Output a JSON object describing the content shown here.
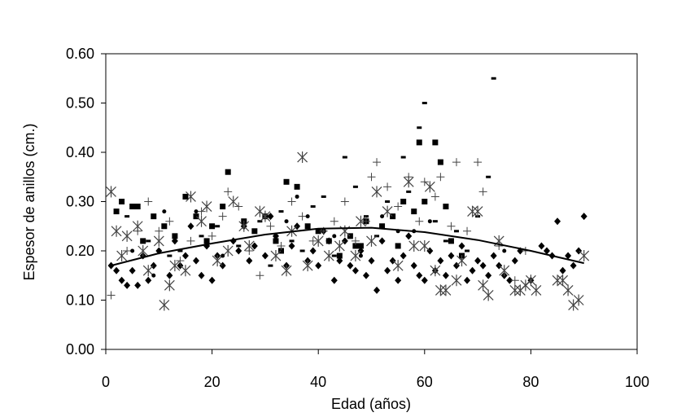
{
  "chart_data": {
    "type": "scatter",
    "title": "",
    "xlabel": "Edad (años)",
    "ylabel": "Espesor de anillos (cm.)",
    "xlim": [
      0,
      100
    ],
    "ylim": [
      0,
      0.6
    ],
    "x_ticks": [
      0,
      20,
      40,
      60,
      80,
      100
    ],
    "x_tick_labels": [
      "0",
      "20",
      "40",
      "60",
      "80",
      "100"
    ],
    "y_ticks": [
      0,
      0.1,
      0.2,
      0.3,
      0.4,
      0.5,
      0.6
    ],
    "y_tick_labels": [
      "0.00",
      "0.10",
      "0.20",
      "0.30",
      "0.40",
      "0.50",
      "0.60"
    ],
    "grid": false,
    "legend": "none",
    "colors": {
      "points": "#000000",
      "light_points": "#444444",
      "axis": "#000000"
    },
    "series": [
      {
        "marker": "diamond",
        "points": [
          [
            1,
            0.17
          ],
          [
            2,
            0.16
          ],
          [
            3,
            0.14
          ],
          [
            4,
            0.13
          ],
          [
            5,
            0.16
          ],
          [
            6,
            0.13
          ],
          [
            7,
            0.19
          ],
          [
            8,
            0.14
          ],
          [
            9,
            0.17
          ],
          [
            10,
            0.2
          ],
          [
            12,
            0.15
          ],
          [
            13,
            0.22
          ],
          [
            14,
            0.17
          ],
          [
            15,
            0.19
          ],
          [
            16,
            0.25
          ],
          [
            17,
            0.18
          ],
          [
            18,
            0.15
          ],
          [
            19,
            0.21
          ],
          [
            20,
            0.14
          ],
          [
            21,
            0.19
          ],
          [
            22,
            0.17
          ],
          [
            24,
            0.22
          ],
          [
            25,
            0.2
          ],
          [
            26,
            0.25
          ],
          [
            27,
            0.18
          ],
          [
            28,
            0.21
          ],
          [
            30,
            0.19
          ],
          [
            31,
            0.27
          ],
          [
            32,
            0.23
          ],
          [
            34,
            0.17
          ],
          [
            35,
            0.21
          ],
          [
            36,
            0.25
          ],
          [
            38,
            0.18
          ],
          [
            39,
            0.2
          ],
          [
            40,
            0.17
          ],
          [
            41,
            0.24
          ],
          [
            42,
            0.22
          ],
          [
            43,
            0.14
          ],
          [
            44,
            0.18
          ],
          [
            45,
            0.22
          ],
          [
            46,
            0.17
          ],
          [
            47,
            0.16
          ],
          [
            48,
            0.2
          ],
          [
            49,
            0.15
          ],
          [
            50,
            0.18
          ],
          [
            51,
            0.12
          ],
          [
            52,
            0.22
          ],
          [
            53,
            0.16
          ],
          [
            54,
            0.18
          ],
          [
            55,
            0.14
          ],
          [
            56,
            0.19
          ],
          [
            57,
            0.23
          ],
          [
            58,
            0.17
          ],
          [
            59,
            0.15
          ],
          [
            60,
            0.14
          ],
          [
            61,
            0.2
          ],
          [
            62,
            0.16
          ],
          [
            63,
            0.18
          ],
          [
            64,
            0.15
          ],
          [
            65,
            0.19
          ],
          [
            66,
            0.17
          ],
          [
            67,
            0.21
          ],
          [
            68,
            0.14
          ],
          [
            69,
            0.16
          ],
          [
            70,
            0.18
          ],
          [
            71,
            0.17
          ],
          [
            72,
            0.15
          ],
          [
            73,
            0.19
          ],
          [
            74,
            0.17
          ],
          [
            75,
            0.15
          ],
          [
            76,
            0.14
          ],
          [
            77,
            0.18
          ],
          [
            78,
            0.2
          ],
          [
            80,
            0.14
          ],
          [
            82,
            0.21
          ],
          [
            83,
            0.2
          ],
          [
            84,
            0.19
          ],
          [
            85,
            0.26
          ],
          [
            86,
            0.16
          ],
          [
            87,
            0.19
          ],
          [
            88,
            0.17
          ],
          [
            89,
            0.2
          ],
          [
            90,
            0.27
          ]
        ]
      },
      {
        "marker": "square",
        "points": [
          [
            2,
            0.28
          ],
          [
            3,
            0.3
          ],
          [
            5,
            0.29
          ],
          [
            6,
            0.29
          ],
          [
            7,
            0.22
          ],
          [
            9,
            0.27
          ],
          [
            11,
            0.25
          ],
          [
            13,
            0.23
          ],
          [
            15,
            0.31
          ],
          [
            17,
            0.27
          ],
          [
            19,
            0.22
          ],
          [
            20,
            0.25
          ],
          [
            22,
            0.29
          ],
          [
            23,
            0.36
          ],
          [
            26,
            0.26
          ],
          [
            28,
            0.24
          ],
          [
            30,
            0.27
          ],
          [
            32,
            0.22
          ],
          [
            33,
            0.2
          ],
          [
            34,
            0.34
          ],
          [
            36,
            0.33
          ],
          [
            38,
            0.25
          ],
          [
            40,
            0.24
          ],
          [
            42,
            0.22
          ],
          [
            44,
            0.19
          ],
          [
            46,
            0.23
          ],
          [
            47,
            0.21
          ],
          [
            48,
            0.21
          ],
          [
            49,
            0.26
          ],
          [
            52,
            0.25
          ],
          [
            54,
            0.27
          ],
          [
            55,
            0.21
          ],
          [
            56,
            0.3
          ],
          [
            58,
            0.28
          ],
          [
            59,
            0.42
          ],
          [
            60,
            0.3
          ],
          [
            62,
            0.42
          ],
          [
            63,
            0.38
          ],
          [
            64,
            0.29
          ],
          [
            65,
            0.22
          ],
          [
            67,
            0.19
          ]
        ]
      },
      {
        "marker": "dash",
        "points": [
          [
            4,
            0.27
          ],
          [
            8,
            0.22
          ],
          [
            12,
            0.19
          ],
          [
            14,
            0.2
          ],
          [
            18,
            0.23
          ],
          [
            21,
            0.25
          ],
          [
            25,
            0.21
          ],
          [
            27,
            0.18
          ],
          [
            29,
            0.26
          ],
          [
            31,
            0.17
          ],
          [
            33,
            0.28
          ],
          [
            35,
            0.22
          ],
          [
            37,
            0.2
          ],
          [
            39,
            0.29
          ],
          [
            41,
            0.31
          ],
          [
            43,
            0.19
          ],
          [
            45,
            0.39
          ],
          [
            47,
            0.33
          ],
          [
            49,
            0.27
          ],
          [
            51,
            0.23
          ],
          [
            53,
            0.3
          ],
          [
            56,
            0.39
          ],
          [
            57,
            0.32
          ],
          [
            59,
            0.45
          ],
          [
            60,
            0.5
          ],
          [
            62,
            0.26
          ],
          [
            64,
            0.22
          ],
          [
            66,
            0.24
          ],
          [
            68,
            0.2
          ],
          [
            70,
            0.27
          ],
          [
            72,
            0.35
          ],
          [
            73,
            0.55
          ]
        ]
      },
      {
        "marker": "plus",
        "points": [
          [
            1,
            0.11
          ],
          [
            4,
            0.2
          ],
          [
            6,
            0.24
          ],
          [
            8,
            0.3
          ],
          [
            10,
            0.24
          ],
          [
            12,
            0.26
          ],
          [
            14,
            0.18
          ],
          [
            16,
            0.22
          ],
          [
            18,
            0.28
          ],
          [
            20,
            0.23
          ],
          [
            22,
            0.27
          ],
          [
            23,
            0.32
          ],
          [
            25,
            0.29
          ],
          [
            27,
            0.2
          ],
          [
            29,
            0.15
          ],
          [
            31,
            0.25
          ],
          [
            33,
            0.21
          ],
          [
            35,
            0.3
          ],
          [
            37,
            0.27
          ],
          [
            39,
            0.22
          ],
          [
            41,
            0.24
          ],
          [
            43,
            0.26
          ],
          [
            45,
            0.3
          ],
          [
            47,
            0.22
          ],
          [
            49,
            0.26
          ],
          [
            50,
            0.35
          ],
          [
            51,
            0.38
          ],
          [
            53,
            0.33
          ],
          [
            55,
            0.29
          ],
          [
            57,
            0.35
          ],
          [
            59,
            0.26
          ],
          [
            60,
            0.34
          ],
          [
            62,
            0.31
          ],
          [
            63,
            0.35
          ],
          [
            65,
            0.25
          ],
          [
            66,
            0.38
          ],
          [
            68,
            0.24
          ],
          [
            70,
            0.38
          ],
          [
            71,
            0.32
          ],
          [
            74,
            0.21
          ],
          [
            77,
            0.14
          ],
          [
            79,
            0.2
          ]
        ]
      },
      {
        "marker": "asterisk",
        "points": [
          [
            1,
            0.32
          ],
          [
            2,
            0.24
          ],
          [
            3,
            0.19
          ],
          [
            4,
            0.23
          ],
          [
            6,
            0.25
          ],
          [
            7,
            0.2
          ],
          [
            8,
            0.16
          ],
          [
            10,
            0.22
          ],
          [
            11,
            0.09
          ],
          [
            12,
            0.13
          ],
          [
            13,
            0.17
          ],
          [
            15,
            0.16
          ],
          [
            16,
            0.31
          ],
          [
            18,
            0.26
          ],
          [
            19,
            0.29
          ],
          [
            21,
            0.18
          ],
          [
            23,
            0.2
          ],
          [
            24,
            0.3
          ],
          [
            26,
            0.25
          ],
          [
            27,
            0.21
          ],
          [
            29,
            0.28
          ],
          [
            30,
            0.27
          ],
          [
            32,
            0.19
          ],
          [
            34,
            0.16
          ],
          [
            35,
            0.24
          ],
          [
            37,
            0.39
          ],
          [
            38,
            0.17
          ],
          [
            40,
            0.22
          ],
          [
            42,
            0.19
          ],
          [
            44,
            0.21
          ],
          [
            45,
            0.24
          ],
          [
            47,
            0.19
          ],
          [
            48,
            0.26
          ],
          [
            50,
            0.22
          ],
          [
            51,
            0.32
          ],
          [
            53,
            0.28
          ],
          [
            55,
            0.17
          ],
          [
            57,
            0.34
          ],
          [
            58,
            0.21
          ],
          [
            60,
            0.21
          ],
          [
            61,
            0.33
          ],
          [
            62,
            0.16
          ],
          [
            63,
            0.12
          ],
          [
            64,
            0.12
          ],
          [
            66,
            0.14
          ],
          [
            67,
            0.18
          ],
          [
            69,
            0.28
          ],
          [
            70,
            0.28
          ],
          [
            71,
            0.13
          ],
          [
            72,
            0.11
          ],
          [
            74,
            0.22
          ],
          [
            75,
            0.16
          ],
          [
            77,
            0.12
          ],
          [
            78,
            0.12
          ],
          [
            79,
            0.13
          ],
          [
            80,
            0.14
          ],
          [
            81,
            0.12
          ],
          [
            85,
            0.14
          ],
          [
            86,
            0.14
          ],
          [
            87,
            0.12
          ],
          [
            88,
            0.09
          ],
          [
            89,
            0.1
          ],
          [
            90,
            0.19
          ]
        ]
      },
      {
        "marker": "dot",
        "points": [
          [
            5,
            0.2
          ],
          [
            9,
            0.15
          ],
          [
            11,
            0.28
          ],
          [
            17,
            0.28
          ],
          [
            22,
            0.19
          ],
          [
            28,
            0.21
          ],
          [
            34,
            0.26
          ],
          [
            36,
            0.31
          ],
          [
            38,
            0.27
          ],
          [
            43,
            0.23
          ],
          [
            48,
            0.19
          ],
          [
            52,
            0.27
          ],
          [
            55,
            0.24
          ],
          [
            58,
            0.24
          ],
          [
            61,
            0.26
          ],
          [
            69,
            0.16
          ],
          [
            75,
            0.2
          ]
        ]
      }
    ],
    "trend_line": {
      "x": [
        1,
        10,
        20,
        30,
        40,
        50,
        60,
        70,
        80,
        90
      ],
      "y": [
        0.17,
        0.195,
        0.215,
        0.233,
        0.245,
        0.247,
        0.238,
        0.222,
        0.2,
        0.175
      ]
    }
  }
}
